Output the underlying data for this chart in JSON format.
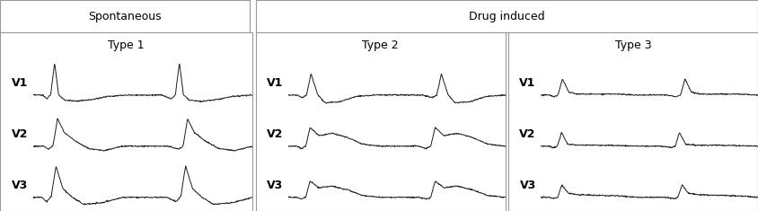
{
  "title_spontaneous": "Spontaneous",
  "title_drug": "Drug induced",
  "type1_label": "Type 1",
  "type2_label": "Type 2",
  "type3_label": "Type 3",
  "lead_labels": [
    "V1",
    "V2",
    "V3"
  ],
  "bg_color": "#ffffff",
  "line_color": "#1a1a1a",
  "box_edge_color": "#999999",
  "font_size_header": 9,
  "font_size_type": 9,
  "font_size_lead": 9
}
